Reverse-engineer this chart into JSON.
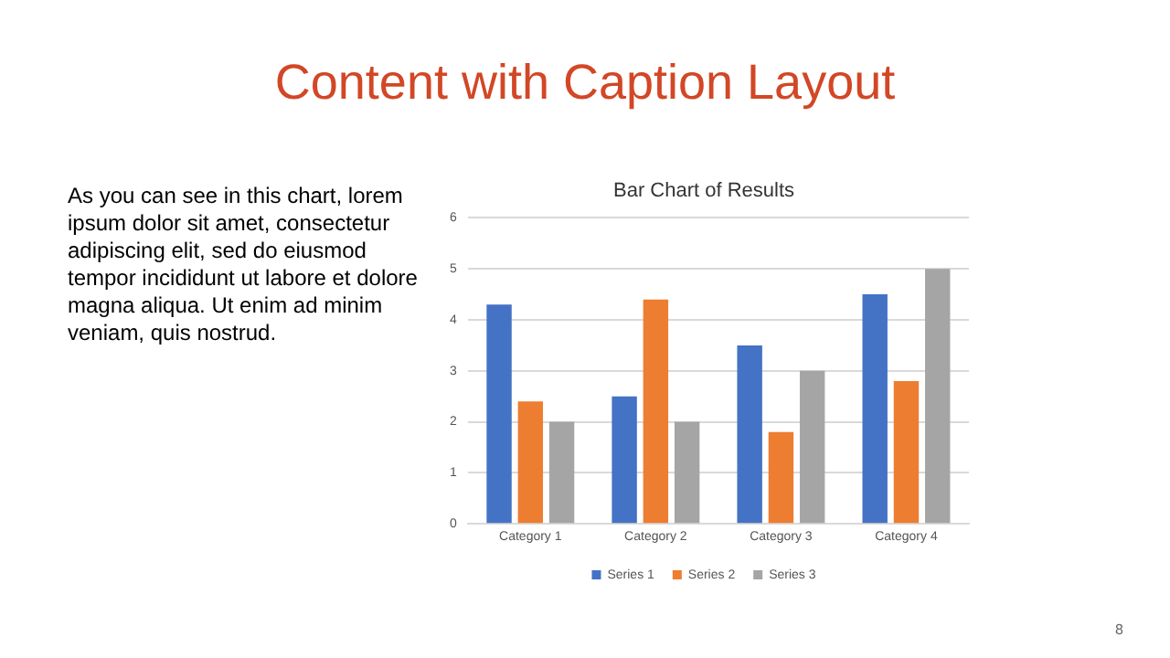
{
  "chart_data": {
    "type": "bar",
    "title": "Bar Chart of Results",
    "annotations": [
      "Content with Caption Layout",
      "As you can see in this chart, lorem ipsum dolor sit amet, consectetur adipiscing elit, sed do eiusmod tempor incididunt ut labore et dolore magna aliqua. Ut enim ad minim veniam, quis nostrud.",
      "8"
    ],
    "categories": [
      "Category 1",
      "Category 2",
      "Category 3",
      "Category 4"
    ],
    "series": [
      {
        "name": "Series 1",
        "color": "#4472c4",
        "values": [
          4.3,
          2.5,
          3.5,
          4.5
        ]
      },
      {
        "name": "Series 2",
        "color": "#ed7d31",
        "values": [
          2.4,
          4.4,
          1.8,
          2.8
        ]
      },
      {
        "name": "Series 3",
        "color": "#a5a5a5",
        "values": [
          2,
          2,
          3,
          5
        ]
      }
    ],
    "ylim": [
      0,
      6
    ],
    "yticks": [
      0,
      1,
      2,
      3,
      4,
      5,
      6
    ],
    "grid": "y",
    "legend": "bottom"
  }
}
